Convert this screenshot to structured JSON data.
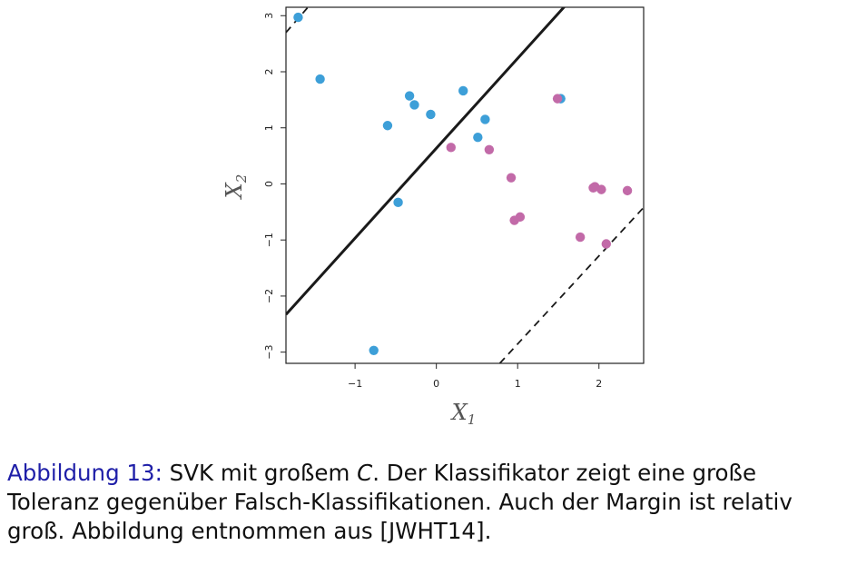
{
  "chart_data": {
    "type": "scatter",
    "xlabel": "X",
    "xlabel_sub": "1",
    "ylabel": "X",
    "ylabel_sub": "2",
    "xlim": [
      -1.85,
      2.55
    ],
    "ylim": [
      -3.2,
      3.15
    ],
    "x_ticks": [
      -1,
      0,
      1,
      2
    ],
    "x_tick_labels": [
      "−1",
      "0",
      "1",
      "2"
    ],
    "y_ticks": [
      -3,
      -2,
      -1,
      0,
      1,
      2,
      3
    ],
    "y_tick_labels": [
      "−3",
      "−2",
      "−1",
      "0",
      "1",
      "2",
      "3"
    ],
    "grid": false,
    "series": [
      {
        "color": "#3d9fd8",
        "points": [
          [
            -1.7,
            2.97
          ],
          [
            -1.43,
            1.87
          ],
          [
            -0.6,
            1.04
          ],
          [
            -0.33,
            1.57
          ],
          [
            -0.27,
            1.41
          ],
          [
            -0.07,
            1.24
          ],
          [
            0.33,
            1.66
          ],
          [
            0.6,
            1.15
          ],
          [
            0.51,
            0.83
          ],
          [
            1.53,
            1.52
          ],
          [
            -0.47,
            -0.33
          ],
          [
            -0.77,
            -2.97
          ]
        ]
      },
      {
        "color": "#c26aa8",
        "points": [
          [
            0.18,
            0.65
          ],
          [
            0.65,
            0.61
          ],
          [
            1.49,
            1.52
          ],
          [
            0.92,
            0.11
          ],
          [
            1.93,
            -0.07
          ],
          [
            1.95,
            -0.05
          ],
          [
            2.03,
            -0.1
          ],
          [
            2.35,
            -0.12
          ],
          [
            0.96,
            -0.65
          ],
          [
            1.03,
            -0.59
          ],
          [
            1.77,
            -0.95
          ],
          [
            2.09,
            -1.07
          ]
        ]
      }
    ],
    "lines": [
      {
        "style": "solid",
        "from": [
          -1.85,
          -2.33
        ],
        "to": [
          1.6,
          3.2
        ]
      },
      {
        "style": "dashed",
        "from": [
          -1.85,
          2.7
        ],
        "to": [
          -1.55,
          3.2
        ]
      },
      {
        "style": "dashed",
        "from": [
          0.78,
          -3.2
        ],
        "to": [
          2.55,
          -0.42
        ]
      }
    ]
  },
  "caption": {
    "figure_label": "Abbildung 13:",
    "text_before_math": " SVK mit großem ",
    "math": "C",
    "text_after_math": ". Der Klassifikator zeigt eine große Toleranz gegenüber Falsch-Klassifikationen. Auch der Margin ist relativ groß. Abbildung entnommen aus [JWHT14]."
  }
}
